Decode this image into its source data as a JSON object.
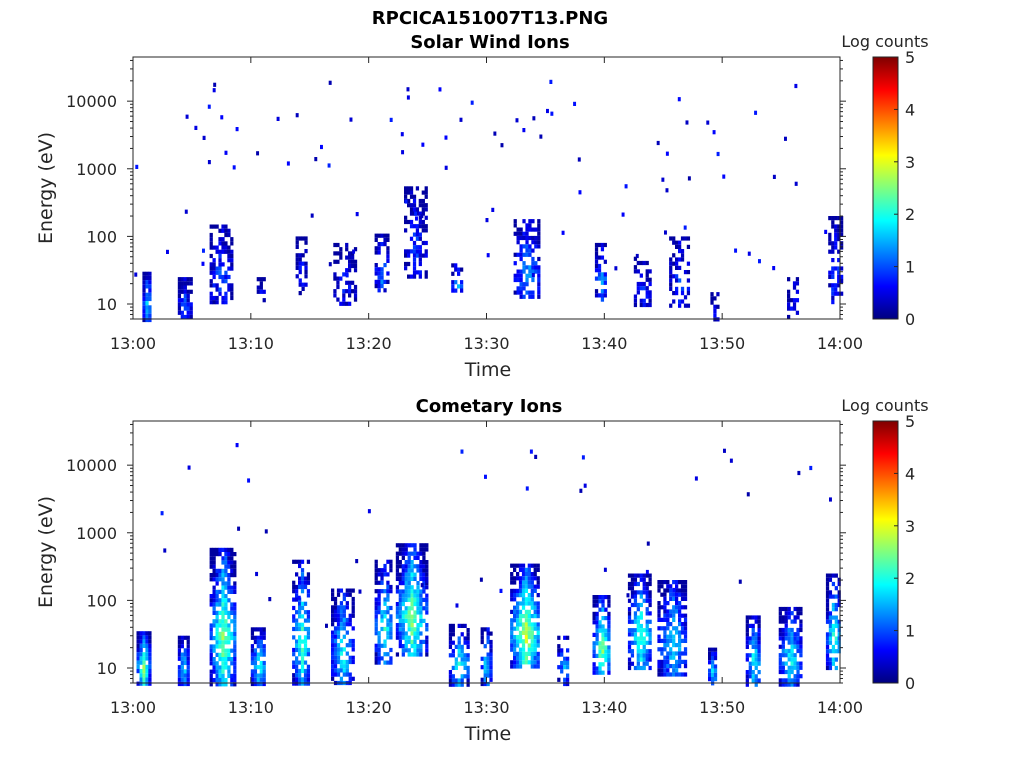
{
  "figure": {
    "file_title": "RPCICA151007T13.PNG"
  },
  "colorscale": {
    "stops": [
      "#00007f",
      "#0000ff",
      "#007fff",
      "#00ffff",
      "#7fff7f",
      "#ffff00",
      "#ff7f00",
      "#ff0000",
      "#7f0000"
    ]
  },
  "chart_data": [
    {
      "type": "heatmap",
      "title": "Solar Wind Ions",
      "xlabel": "Time",
      "ylabel": "Energy (eV)",
      "x_ticks": [
        "13:00",
        "13:10",
        "13:20",
        "13:30",
        "13:40",
        "13:50",
        "14:00"
      ],
      "x_range_minutes": [
        0,
        60
      ],
      "y_ticks": [
        "10",
        "100",
        "1000",
        "10000"
      ],
      "y_scale": "log",
      "y_range_eV": [
        6,
        45000
      ],
      "colorbar": {
        "label": "Log counts",
        "ticks": [
          "0",
          "1",
          "2",
          "3",
          "4",
          "5"
        ],
        "range": [
          0,
          5
        ]
      },
      "clusters": [
        {
          "t_min": 0.8,
          "t_max": 1.5,
          "e_low": 6,
          "e_high": 30,
          "peak": 1.8,
          "density": 0.95,
          "seed": 11
        },
        {
          "t_min": 3.8,
          "t_max": 4.8,
          "e_low": 6,
          "e_high": 25,
          "peak": 1.0,
          "density": 0.8,
          "seed": 12
        },
        {
          "t_min": 6.5,
          "t_max": 8.3,
          "e_low": 10,
          "e_high": 150,
          "peak": 1.0,
          "density": 0.6,
          "seed": 13
        },
        {
          "t_min": 10.5,
          "t_max": 11.2,
          "e_low": 12,
          "e_high": 25,
          "peak": 0.6,
          "density": 0.4,
          "seed": 14
        },
        {
          "t_min": 13.8,
          "t_max": 14.6,
          "e_low": 15,
          "e_high": 100,
          "peak": 0.7,
          "density": 0.5,
          "seed": 15
        },
        {
          "t_min": 17.0,
          "t_max": 18.8,
          "e_low": 10,
          "e_high": 80,
          "peak": 0.7,
          "density": 0.45,
          "seed": 16
        },
        {
          "t_min": 20.5,
          "t_max": 21.5,
          "e_low": 15,
          "e_high": 110,
          "peak": 1.2,
          "density": 0.5,
          "seed": 17
        },
        {
          "t_min": 23.0,
          "t_max": 24.8,
          "e_low": 25,
          "e_high": 550,
          "peak": 0.9,
          "density": 0.6,
          "seed": 18
        },
        {
          "t_min": 27.0,
          "t_max": 27.8,
          "e_low": 15,
          "e_high": 40,
          "peak": 1.6,
          "density": 0.6,
          "seed": 19
        },
        {
          "t_min": 32.3,
          "t_max": 34.5,
          "e_low": 12,
          "e_high": 180,
          "peak": 1.4,
          "density": 0.6,
          "seed": 20
        },
        {
          "t_min": 39.2,
          "t_max": 40.2,
          "e_low": 12,
          "e_high": 80,
          "peak": 1.4,
          "density": 0.55,
          "seed": 21
        },
        {
          "t_min": 42.5,
          "t_max": 43.8,
          "e_low": 10,
          "e_high": 50,
          "peak": 0.8,
          "density": 0.55,
          "seed": 22
        },
        {
          "t_min": 45.5,
          "t_max": 47.2,
          "e_low": 10,
          "e_high": 100,
          "peak": 0.9,
          "density": 0.45,
          "seed": 23
        },
        {
          "t_min": 49.0,
          "t_max": 49.6,
          "e_low": 6,
          "e_high": 15,
          "peak": 0.5,
          "density": 0.6,
          "seed": 24
        },
        {
          "t_min": 55.5,
          "t_max": 56.5,
          "e_low": 6,
          "e_high": 25,
          "peak": 0.6,
          "density": 0.55,
          "seed": 25
        },
        {
          "t_min": 59.0,
          "t_max": 60.0,
          "e_low": 10,
          "e_high": 200,
          "peak": 1.0,
          "density": 0.5,
          "seed": 26
        }
      ],
      "scatter_seed": 101,
      "scatter_count": 90
    },
    {
      "type": "heatmap",
      "title": "Cometary Ions",
      "xlabel": "Time",
      "ylabel": "Energy (eV)",
      "x_ticks": [
        "13:00",
        "13:10",
        "13:20",
        "13:30",
        "13:40",
        "13:50",
        "14:00"
      ],
      "x_range_minutes": [
        0,
        60
      ],
      "y_ticks": [
        "10",
        "100",
        "1000",
        "10000"
      ],
      "y_scale": "log",
      "y_range_eV": [
        6,
        45000
      ],
      "colorbar": {
        "label": "Log counts",
        "ticks": [
          "0",
          "1",
          "2",
          "3",
          "4",
          "5"
        ],
        "range": [
          0,
          5
        ]
      },
      "clusters": [
        {
          "t_min": 0.3,
          "t_max": 1.3,
          "e_low": 6,
          "e_high": 35,
          "peak": 2.6,
          "density": 0.9,
          "seed": 31
        },
        {
          "t_min": 3.8,
          "t_max": 4.6,
          "e_low": 6,
          "e_high": 30,
          "peak": 1.8,
          "density": 0.8,
          "seed": 32
        },
        {
          "t_min": 6.5,
          "t_max": 8.6,
          "e_low": 6,
          "e_high": 600,
          "peak": 2.6,
          "density": 0.75,
          "seed": 33
        },
        {
          "t_min": 10.0,
          "t_max": 11.2,
          "e_low": 6,
          "e_high": 40,
          "peak": 2.0,
          "density": 0.8,
          "seed": 34
        },
        {
          "t_min": 13.5,
          "t_max": 15.0,
          "e_low": 6,
          "e_high": 400,
          "peak": 2.2,
          "density": 0.7,
          "seed": 35
        },
        {
          "t_min": 16.8,
          "t_max": 18.6,
          "e_low": 6,
          "e_high": 150,
          "peak": 2.0,
          "density": 0.7,
          "seed": 36
        },
        {
          "t_min": 20.5,
          "t_max": 22.0,
          "e_low": 12,
          "e_high": 400,
          "peak": 2.0,
          "density": 0.6,
          "seed": 37
        },
        {
          "t_min": 22.3,
          "t_max": 24.8,
          "e_low": 15,
          "e_high": 700,
          "peak": 2.6,
          "density": 0.8,
          "seed": 38
        },
        {
          "t_min": 26.8,
          "t_max": 28.4,
          "e_low": 6,
          "e_high": 45,
          "peak": 2.0,
          "density": 0.6,
          "seed": 39
        },
        {
          "t_min": 29.5,
          "t_max": 30.3,
          "e_low": 6,
          "e_high": 40,
          "peak": 1.8,
          "density": 0.7,
          "seed": 40
        },
        {
          "t_min": 32.0,
          "t_max": 34.5,
          "e_low": 10,
          "e_high": 350,
          "peak": 2.9,
          "density": 0.8,
          "seed": 41
        },
        {
          "t_min": 36.0,
          "t_max": 37.0,
          "e_low": 6,
          "e_high": 30,
          "peak": 1.5,
          "density": 0.55,
          "seed": 42
        },
        {
          "t_min": 39.0,
          "t_max": 40.4,
          "e_low": 8,
          "e_high": 120,
          "peak": 2.6,
          "density": 0.75,
          "seed": 43
        },
        {
          "t_min": 42.0,
          "t_max": 44.0,
          "e_low": 10,
          "e_high": 250,
          "peak": 2.2,
          "density": 0.7,
          "seed": 44
        },
        {
          "t_min": 44.5,
          "t_max": 47.0,
          "e_low": 8,
          "e_high": 200,
          "peak": 1.8,
          "density": 0.7,
          "seed": 45
        },
        {
          "t_min": 48.8,
          "t_max": 49.4,
          "e_low": 6,
          "e_high": 20,
          "peak": 1.8,
          "density": 0.8,
          "seed": 46
        },
        {
          "t_min": 52.0,
          "t_max": 53.2,
          "e_low": 6,
          "e_high": 60,
          "peak": 2.0,
          "density": 0.75,
          "seed": 47
        },
        {
          "t_min": 54.8,
          "t_max": 56.6,
          "e_low": 6,
          "e_high": 80,
          "peak": 2.0,
          "density": 0.7,
          "seed": 48
        },
        {
          "t_min": 58.8,
          "t_max": 60.0,
          "e_low": 10,
          "e_high": 250,
          "peak": 2.2,
          "density": 0.7,
          "seed": 49
        }
      ],
      "scatter_seed": 202,
      "scatter_count": 40
    }
  ]
}
